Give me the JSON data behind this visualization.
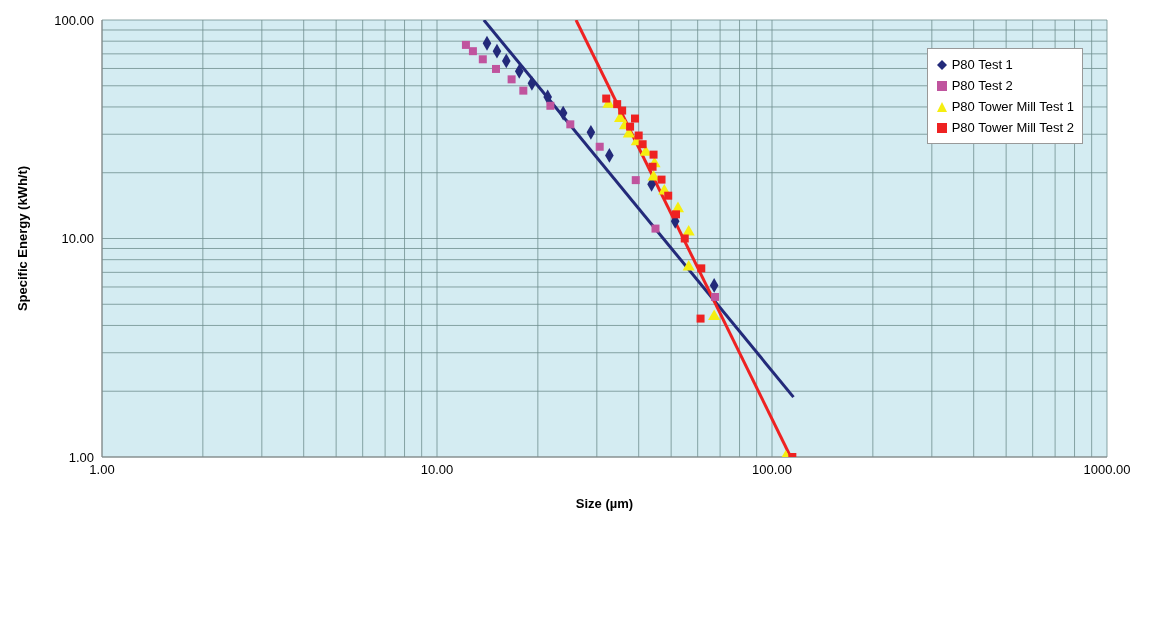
{
  "chart_data": {
    "type": "scatter",
    "xlabel": "Size (µm)",
    "ylabel": "Specific Energy (kWh/t)",
    "log": "xy",
    "grid": true,
    "legend": "top right",
    "xlim": [
      1,
      1000
    ],
    "xticks": [
      {
        "value": 1,
        "label": "1.00"
      },
      {
        "value": 2,
        "label": null
      },
      {
        "value": 3,
        "label": null
      },
      {
        "value": 4,
        "label": null
      },
      {
        "value": 5,
        "label": null
      },
      {
        "value": 6,
        "label": null
      },
      {
        "value": 7,
        "label": null
      },
      {
        "value": 8,
        "label": null
      },
      {
        "value": 9,
        "label": null
      },
      {
        "value": 10,
        "label": "10.00"
      },
      {
        "value": 20,
        "label": null
      },
      {
        "value": 30,
        "label": null
      },
      {
        "value": 40,
        "label": null
      },
      {
        "value": 50,
        "label": null
      },
      {
        "value": 60,
        "label": null
      },
      {
        "value": 70,
        "label": null
      },
      {
        "value": 80,
        "label": null
      },
      {
        "value": 90,
        "label": null
      },
      {
        "value": 100,
        "label": "100.00"
      },
      {
        "value": 200,
        "label": null
      },
      {
        "value": 300,
        "label": null
      },
      {
        "value": 400,
        "label": null
      },
      {
        "value": 500,
        "label": null
      },
      {
        "value": 600,
        "label": null
      },
      {
        "value": 700,
        "label": null
      },
      {
        "value": 800,
        "label": null
      },
      {
        "value": 900,
        "label": null
      },
      {
        "value": 1000,
        "label": "1000.00"
      }
    ],
    "ylim": [
      1,
      100
    ],
    "yticks": [
      {
        "value": 1,
        "label": "1.00"
      },
      {
        "value": 2,
        "label": null
      },
      {
        "value": 3,
        "label": null
      },
      {
        "value": 4,
        "label": null
      },
      {
        "value": 5,
        "label": null
      },
      {
        "value": 6,
        "label": null
      },
      {
        "value": 7,
        "label": null
      },
      {
        "value": 8,
        "label": null
      },
      {
        "value": 9,
        "label": null
      },
      {
        "value": 10,
        "label": "10.00"
      },
      {
        "value": 20,
        "label": null
      },
      {
        "value": 30,
        "label": null
      },
      {
        "value": 40,
        "label": null
      },
      {
        "value": 50,
        "label": null
      },
      {
        "value": 60,
        "label": null
      },
      {
        "value": 70,
        "label": null
      },
      {
        "value": 80,
        "label": null
      },
      {
        "value": 90,
        "label": null
      },
      {
        "value": 100,
        "label": "100.00"
      }
    ],
    "series": [
      {
        "name": "P80 Test 1",
        "marker": "diamond",
        "color": "#232a7a",
        "x": [
          14.1,
          15.1,
          16.1,
          17.6,
          19.2,
          21.4,
          23.8,
          28.8,
          32.7,
          43.7,
          51.4,
          67.2
        ],
        "values": [
          78.3,
          72.0,
          65.0,
          58.2,
          51.3,
          44.4,
          37.5,
          30.6,
          24.0,
          17.7,
          12.0,
          6.1
        ]
      },
      {
        "name": "P80 Test 2",
        "marker": "square",
        "color": "#c0549e",
        "x": [
          12.2,
          12.8,
          13.7,
          15.0,
          16.7,
          18.1,
          21.8,
          25.0,
          30.6,
          39.2,
          44.9,
          67.6
        ],
        "values": [
          76.9,
          72.0,
          66.1,
          59.7,
          53.5,
          47.5,
          40.5,
          33.3,
          26.3,
          18.5,
          11.1,
          5.4
        ]
      },
      {
        "name": "P80 Tower Mill Test 1",
        "marker": "triangle",
        "color": "#f5ee10",
        "x": [
          32.5,
          35.2,
          36.4,
          37.4,
          39.5,
          42.0,
          44.6,
          44.3,
          47.7,
          52.4,
          56.4,
          56.4,
          67.2,
          109.9
        ],
        "values": [
          41.2,
          35.4,
          32.8,
          30.1,
          27.7,
          24.8,
          22.0,
          19.1,
          16.5,
          13.7,
          10.7,
          7.4,
          4.4,
          1.0
        ]
      },
      {
        "name": "P80 Tower Mill Test 2",
        "marker": "square",
        "color": "#ee2222",
        "x": [
          32.0,
          34.5,
          35.7,
          39.0,
          37.7,
          40.0,
          41.1,
          44.3,
          44.0,
          46.8,
          49.0,
          51.7,
          54.9,
          61.5,
          61.2,
          115
        ],
        "values": [
          43.7,
          41.2,
          38.5,
          35.4,
          32.5,
          29.6,
          27.0,
          24.2,
          21.3,
          18.6,
          15.7,
          12.9,
          10.0,
          7.3,
          4.3,
          1.0
        ]
      },
      {
        "type": "line",
        "marker": "none",
        "color": "#232a7a",
        "x": [
          13.8,
          115.9
        ],
        "values": [
          100,
          1.88
        ]
      },
      {
        "type": "line",
        "marker": "none",
        "color": "#ee2222",
        "x": [
          26.0,
          113.7
        ],
        "values": [
          100,
          1.0
        ]
      }
    ]
  }
}
